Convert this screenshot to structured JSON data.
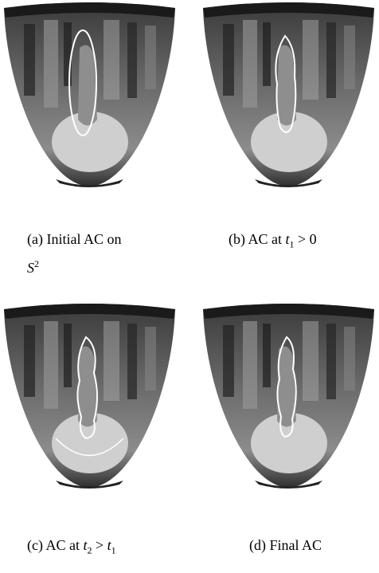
{
  "figures": [
    {
      "caption": [
        {
          "text": "(a) Initial AC on"
        },
        {
          "math": "S",
          "sup": "2"
        }
      ]
    },
    {
      "caption": [
        {
          "text": "(b) AC at "
        },
        {
          "math": "t",
          "sub": "1"
        },
        {
          "text": " > 0"
        }
      ]
    },
    {
      "caption": [
        {
          "text": "(c) AC at "
        },
        {
          "math": "t",
          "sub": "2"
        },
        {
          "text": " > "
        },
        {
          "math": "t",
          "sub": "1"
        }
      ]
    },
    {
      "caption": [
        {
          "text": "(d) Final AC"
        }
      ]
    }
  ]
}
